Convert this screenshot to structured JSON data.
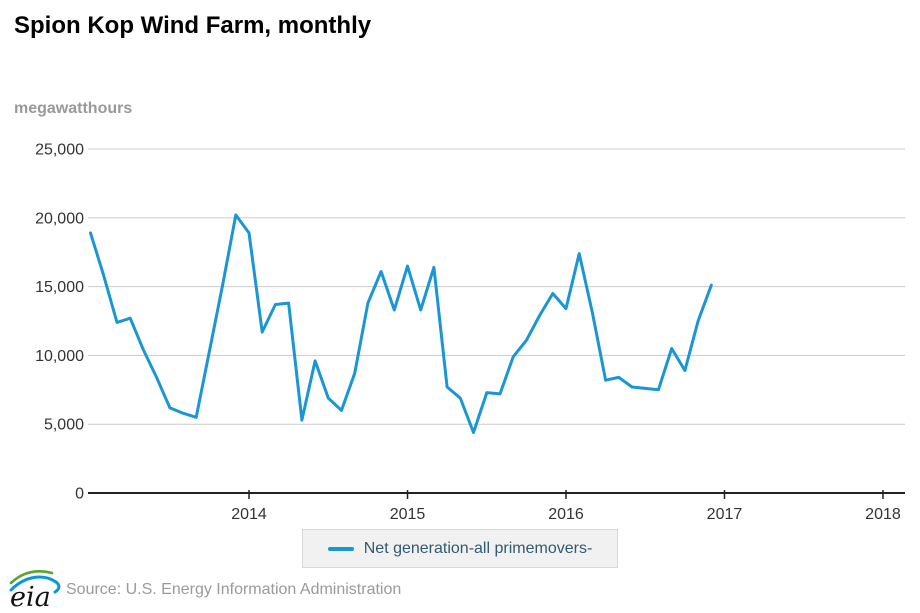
{
  "page": {
    "title": "Spion Kop Wind Farm, monthly",
    "unit_label": "megawatthours",
    "logo_text": "eia",
    "source_text": "Source: U.S. Energy Information Administration"
  },
  "legend": {
    "label": "Net generation-all primemovers-"
  },
  "colors": {
    "series_blue": "#1b96d4",
    "legend_text": "#33596e",
    "legend_background": "#f1f1f1",
    "legend_border": "#d8d8d8",
    "gridline": "#cccccc",
    "axis_line": "#222222",
    "tick_label": "#333333",
    "muted_text": "#999999",
    "logo_green": "#58a630",
    "logo_blue": "#0a97d9"
  },
  "chart_data": {
    "type": "line",
    "title": "Spion Kop Wind Farm, monthly",
    "xlabel": "",
    "ylabel": "megawatthours",
    "grid": "horizontal",
    "legend_position": "bottom-center",
    "xlim": [
      2012.984,
      2018.139
    ],
    "ylim": [
      0,
      25000
    ],
    "x_ticks": [
      {
        "label": "2014",
        "t": 2014
      },
      {
        "label": "2015",
        "t": 2015
      },
      {
        "label": "2016",
        "t": 2016
      },
      {
        "label": "2017",
        "t": 2017
      },
      {
        "label": "2018",
        "t": 2018
      }
    ],
    "y_ticks": [
      {
        "label": "25,000",
        "v": 25000
      },
      {
        "label": "20,000",
        "v": 20000
      },
      {
        "label": "15,000",
        "v": 15000
      },
      {
        "label": "10,000",
        "v": 10000
      },
      {
        "label": "5,000",
        "v": 5000
      },
      {
        "label": "0",
        "v": 0
      }
    ],
    "series": [
      {
        "name": "Net generation-all primemovers-",
        "color": "#1b96d4",
        "frequency": "monthly",
        "start_year": 2013,
        "start_month": 1,
        "end_year": 2016,
        "end_month": 12,
        "unit": "megawatthours",
        "values": [
          18900,
          15800,
          12400,
          12700,
          10400,
          8400,
          6200,
          5800,
          5500,
          10300,
          15100,
          20200,
          18900,
          11700,
          13700,
          13800,
          5300,
          9600,
          6900,
          6000,
          8700,
          13800,
          16100,
          13300,
          16500,
          13300,
          16400,
          7700,
          6900,
          4400,
          7300,
          7200,
          9900,
          11100,
          12900,
          14500,
          13400,
          17400,
          13100,
          8200,
          8400,
          7700,
          7600,
          7500,
          10500,
          8900,
          12500,
          15100
        ]
      }
    ]
  }
}
